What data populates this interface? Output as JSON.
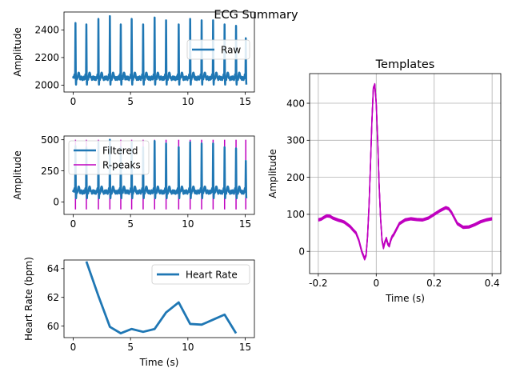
{
  "title": "ECG Summary",
  "colors": {
    "signal": "#1f77b4",
    "rpeaks": "#bf00bf",
    "grid": "#b0b0b0"
  },
  "chart_data": [
    {
      "id": "raw",
      "type": "line",
      "ylabel": "Amplitude",
      "xlabel": "",
      "xlim": [
        -0.8,
        15.8
      ],
      "ylim": [
        1950,
        2530
      ],
      "xticks": [
        0,
        5,
        10,
        15
      ],
      "yticks": [
        2000,
        2200,
        2400
      ],
      "grid": false,
      "legend": {
        "placement": "right",
        "entries": [
          "Raw"
        ]
      },
      "series": [
        {
          "name": "Raw",
          "baseline": 2050,
          "r_peak_values": [
            2450,
            2440,
            2480,
            2500,
            2440,
            2480,
            2440,
            2490,
            2470,
            2440,
            2480,
            2470,
            2470,
            2440,
            2430,
            2340
          ]
        }
      ],
      "r_peak_times": [
        0.2,
        1.15,
        2.2,
        3.2,
        4.15,
        5.1,
        6.1,
        7.1,
        8.1,
        9.2,
        10.2,
        11.2,
        12.2,
        13.2,
        14.2,
        15.05
      ]
    },
    {
      "id": "filtered",
      "type": "line",
      "ylabel": "Amplitude",
      "xlabel": "",
      "xlim": [
        -0.8,
        15.8
      ],
      "ylim": [
        -100,
        530
      ],
      "xticks": [
        0,
        5,
        10,
        15
      ],
      "yticks": [
        0,
        250,
        500
      ],
      "grid": false,
      "legend": {
        "placement": "top-left",
        "entries": [
          "Filtered",
          "R-peaks"
        ]
      },
      "series": [
        {
          "name": "Filtered",
          "baseline": 80,
          "r_peak_values": [
            450,
            440,
            480,
            500,
            440,
            480,
            440,
            490,
            470,
            440,
            480,
            470,
            470,
            440,
            430,
            330
          ]
        },
        {
          "name": "R-peaks",
          "type": "vlines",
          "ymin": -60,
          "ymax": 500
        }
      ],
      "r_peak_times": [
        0.2,
        1.15,
        2.2,
        3.2,
        4.15,
        5.1,
        6.1,
        7.1,
        8.1,
        9.2,
        10.2,
        11.2,
        12.2,
        13.2,
        14.2,
        15.05
      ]
    },
    {
      "id": "heart-rate",
      "type": "line",
      "ylabel": "Heart Rate (bpm)",
      "xlabel": "Time (s)",
      "xlim": [
        -0.8,
        15.8
      ],
      "ylim": [
        59.2,
        64.6
      ],
      "xticks": [
        0,
        5,
        10,
        15
      ],
      "yticks": [
        60,
        62,
        64
      ],
      "grid": false,
      "legend": {
        "placement": "top-right",
        "entries": [
          "Heart Rate"
        ]
      },
      "series": [
        {
          "name": "Heart Rate",
          "x": [
            1.15,
            2.2,
            3.2,
            4.15,
            5.1,
            6.1,
            7.1,
            8.1,
            9.2,
            10.2,
            11.2,
            12.2,
            13.2,
            14.2
          ],
          "y": [
            64.5,
            62.1,
            59.95,
            59.5,
            59.8,
            59.6,
            59.8,
            60.95,
            61.65,
            60.15,
            60.1,
            60.45,
            60.8,
            59.5
          ]
        }
      ]
    },
    {
      "id": "templates",
      "type": "line",
      "title": "Templates",
      "ylabel": "Amplitude",
      "xlabel": "Time (s)",
      "xlim": [
        -0.23,
        0.43
      ],
      "ylim": [
        -60,
        480
      ],
      "xticks": [
        -0.2,
        0.0,
        0.2,
        0.4
      ],
      "yticks": [
        0,
        100,
        200,
        300,
        400
      ],
      "grid": true,
      "series": [
        {
          "name": "Templates",
          "x": [
            -0.2,
            -0.19,
            -0.18,
            -0.17,
            -0.16,
            -0.15,
            -0.14,
            -0.13,
            -0.12,
            -0.11,
            -0.1,
            -0.09,
            -0.08,
            -0.07,
            -0.06,
            -0.05,
            -0.04,
            -0.035,
            -0.03,
            -0.025,
            -0.02,
            -0.015,
            -0.01,
            -0.005,
            0.0,
            0.005,
            0.01,
            0.015,
            0.02,
            0.025,
            0.03,
            0.035,
            0.04,
            0.045,
            0.05,
            0.055,
            0.06,
            0.07,
            0.08,
            0.1,
            0.12,
            0.14,
            0.16,
            0.18,
            0.2,
            0.22,
            0.24,
            0.25,
            0.26,
            0.27,
            0.28,
            0.3,
            0.32,
            0.34,
            0.36,
            0.38,
            0.4
          ],
          "y": [
            85,
            87,
            92,
            96,
            95,
            90,
            87,
            84,
            82,
            79,
            73,
            67,
            58,
            50,
            30,
            0,
            -20,
            -10,
            40,
            120,
            230,
            350,
            440,
            450,
            400,
            300,
            180,
            90,
            30,
            10,
            25,
            35,
            20,
            15,
            30,
            40,
            45,
            60,
            75,
            85,
            88,
            86,
            85,
            90,
            100,
            110,
            118,
            115,
            105,
            90,
            75,
            65,
            66,
            72,
            80,
            85,
            88
          ]
        }
      ]
    }
  ]
}
